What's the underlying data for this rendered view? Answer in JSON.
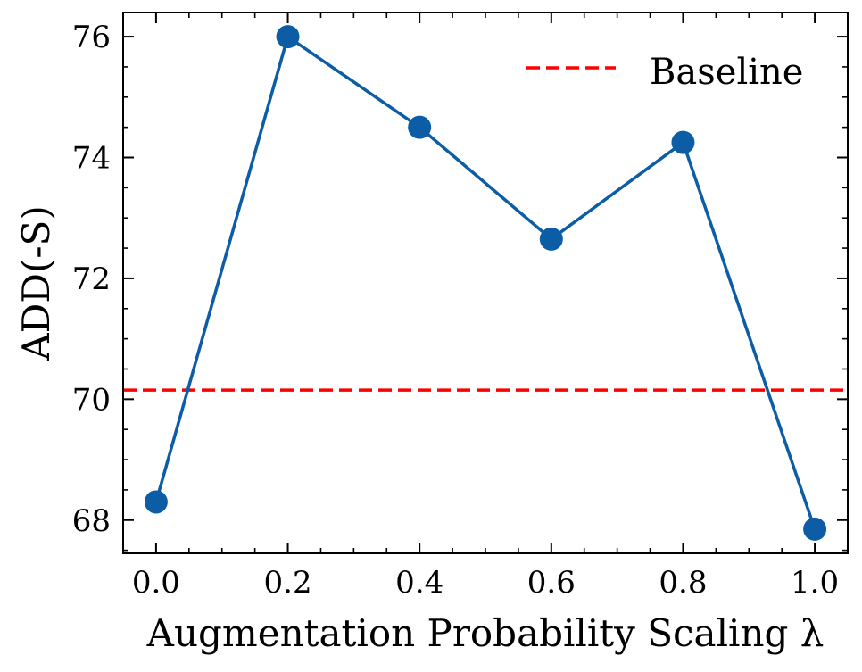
{
  "chart_data": {
    "type": "line",
    "xlabel": "Augmentation Probability Scaling λ",
    "ylabel": "ADD(-S)",
    "xlim": [
      -0.05,
      1.05
    ],
    "ylim": [
      67.45,
      76.4
    ],
    "x_ticks": [
      "0.0",
      "0.2",
      "0.4",
      "0.6",
      "0.8",
      "1.0"
    ],
    "y_ticks": [
      "68",
      "70",
      "72",
      "74",
      "76"
    ],
    "series": [
      {
        "x": [
          0.0,
          0.2,
          0.4,
          0.6,
          0.8,
          1.0
        ],
        "values": [
          68.3,
          76.0,
          74.5,
          72.65,
          74.25,
          67.85
        ],
        "color": "#0c5da5"
      }
    ],
    "baseline": {
      "name": "Baseline",
      "value": 70.15,
      "color": "#ff0000",
      "style": "dashed"
    },
    "legend": {
      "position": "top-right",
      "entries": [
        "Baseline"
      ]
    },
    "grid": false
  }
}
